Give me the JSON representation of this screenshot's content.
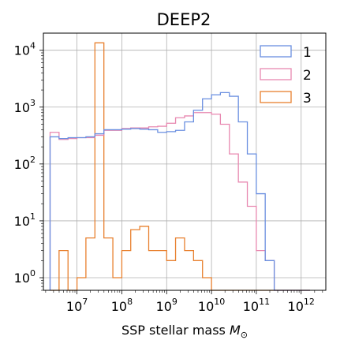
{
  "chart_data": {
    "type": "histogram",
    "title": "DEEP2",
    "xlabel_main": "SSP stellar mass ",
    "xlabel_symbol": "M",
    "xlabel_sub": "⊙",
    "x_scale": "log",
    "y_scale": "log",
    "xlim": [
      1780000.0,
      3550000000000.0
    ],
    "ylim": [
      0.6,
      20000
    ],
    "grid": true,
    "legend_position": "top-right",
    "x_ticks": [
      {
        "value": 10000000.0,
        "base": "10",
        "exp": "7"
      },
      {
        "value": 100000000.0,
        "base": "10",
        "exp": "8"
      },
      {
        "value": 1000000000.0,
        "base": "10",
        "exp": "9"
      },
      {
        "value": 10000000000.0,
        "base": "10",
        "exp": "10"
      },
      {
        "value": 100000000000.0,
        "base": "10",
        "exp": "11"
      },
      {
        "value": 1000000000000.0,
        "base": "10",
        "exp": "12"
      }
    ],
    "y_ticks": [
      {
        "value": 1,
        "base": "10",
        "exp": "0"
      },
      {
        "value": 10,
        "base": "10",
        "exp": "1"
      },
      {
        "value": 100,
        "base": "10",
        "exp": "2"
      },
      {
        "value": 1000,
        "base": "10",
        "exp": "3"
      },
      {
        "value": 10000,
        "base": "10",
        "exp": "4"
      }
    ],
    "bin_edges": [
      2510000.0,
      3980000.0,
      6310000.0,
      10000000.0,
      15800000.0,
      25100000.0,
      39800000.0,
      63100000.0,
      100000000.0,
      158000000.0,
      251000000.0,
      398000000.0,
      631000000.0,
      1000000000.0,
      1580000000.0,
      2510000000.0,
      3980000000.0,
      6310000000.0,
      10000000000.0,
      15800000000.0,
      25100000000.0,
      39800000000.0,
      63100000000.0,
      100000000000.0,
      158000000000.0,
      251000000000.0,
      398000000000.0,
      631000000000.0,
      1000000000000.0,
      1580000000000.0
    ],
    "series": [
      {
        "name": "1",
        "color": "#6a8fe0",
        "values": [
          300,
          280,
          290,
          290,
          300,
          340,
          400,
          400,
          410,
          420,
          410,
          400,
          360,
          370,
          390,
          550,
          880,
          1400,
          1650,
          1800,
          1550,
          550,
          150,
          30,
          2,
          0,
          0,
          0,
          0
        ]
      },
      {
        "name": "2",
        "color": "#e888b0",
        "values": [
          360,
          270,
          280,
          290,
          290,
          320,
          390,
          390,
          420,
          430,
          430,
          450,
          460,
          520,
          650,
          700,
          800,
          800,
          750,
          500,
          150,
          48,
          18,
          3,
          2,
          0,
          0,
          0,
          0
        ]
      },
      {
        "name": "3",
        "color": "#e8802e",
        "values": [
          0,
          3,
          0,
          1,
          5,
          13500,
          5,
          1,
          3,
          7,
          8,
          3,
          3,
          2,
          5,
          3,
          2,
          1,
          0,
          0,
          0,
          0,
          0,
          0,
          0,
          0,
          0,
          0,
          0
        ]
      }
    ]
  }
}
